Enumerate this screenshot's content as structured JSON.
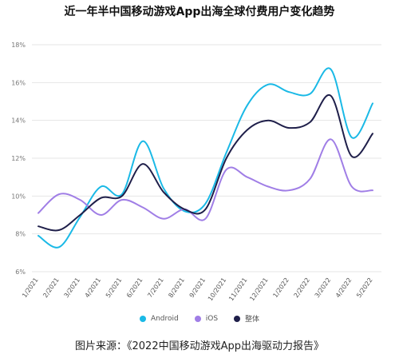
{
  "chart_data": {
    "type": "line",
    "title": "近一年半中国移动游戏App出海全球付费用户变化趋势",
    "x": [
      "1/2021",
      "2/2021",
      "3/2021",
      "4/2021",
      "5/2021",
      "6/2021",
      "7/2021",
      "8/2021",
      "9/2021",
      "10/2021",
      "11/2021",
      "12/2021",
      "1/2022",
      "2/2022",
      "3/2022",
      "4/2022",
      "5/2022"
    ],
    "y_ticks": [
      "18%",
      "16%",
      "14%",
      "12%",
      "10%",
      "8%",
      "6%"
    ],
    "ylim": [
      6,
      18
    ],
    "grid": true,
    "legend_position": "bottom",
    "series": [
      {
        "name": "Android",
        "color": "#1ab9e6",
        "values": [
          7.9,
          7.3,
          8.9,
          10.5,
          10.1,
          12.9,
          10.4,
          9.2,
          9.6,
          12.3,
          14.8,
          15.9,
          15.5,
          15.4,
          16.7,
          13.1,
          14.9
        ]
      },
      {
        "name": "iOS",
        "color": "#a07ee6",
        "values": [
          9.1,
          10.1,
          9.8,
          9.0,
          9.8,
          9.4,
          8.8,
          9.3,
          8.8,
          11.4,
          11.0,
          10.5,
          10.3,
          10.9,
          13.0,
          10.5,
          10.3
        ]
      },
      {
        "name": "整体",
        "color": "#1f1f4a",
        "values": [
          8.4,
          8.2,
          9.0,
          9.9,
          10.0,
          11.7,
          10.2,
          9.3,
          9.3,
          12.0,
          13.5,
          14.0,
          13.6,
          13.9,
          15.3,
          12.1,
          13.3
        ]
      }
    ]
  },
  "source_text": "图片来源：《2022中国移动游戏App出海驱动力报告》"
}
